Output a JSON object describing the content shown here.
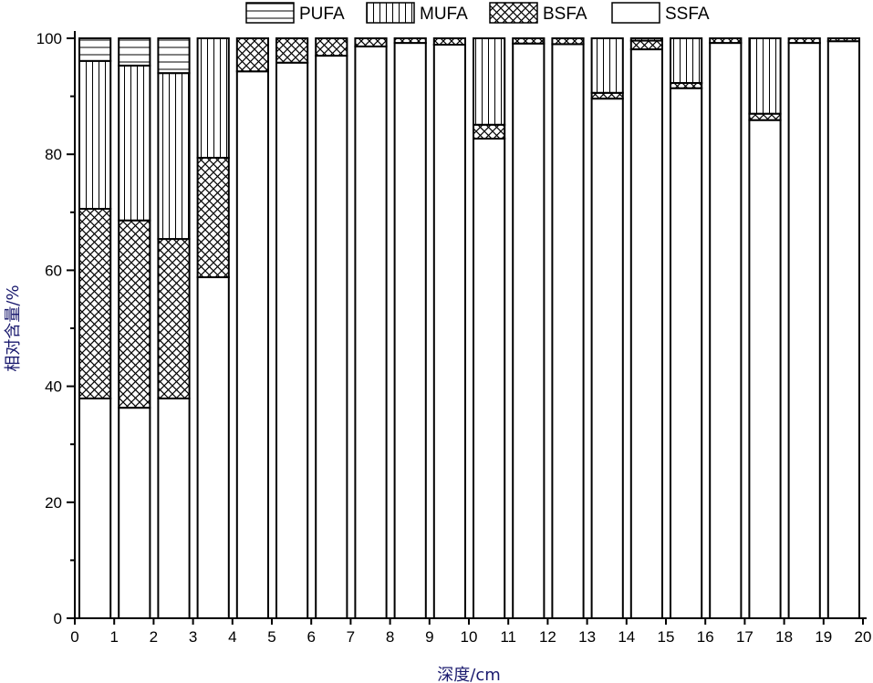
{
  "chart_data": {
    "type": "bar",
    "stacked": true,
    "xlabel": "深度/cm",
    "ylabel": "相对含量/%",
    "xlim": [
      0,
      20
    ],
    "ylim": [
      0,
      100
    ],
    "xticks": [
      "0",
      "1",
      "2",
      "3",
      "4",
      "5",
      "6",
      "7",
      "8",
      "9",
      "10",
      "11",
      "12",
      "13",
      "14",
      "15",
      "16",
      "17",
      "18",
      "19",
      "20"
    ],
    "yticks": [
      "0",
      "20",
      "40",
      "60",
      "80",
      "100"
    ],
    "legend_position": "top",
    "categories": [
      "0-1",
      "1-2",
      "2-3",
      "3-4",
      "4-5",
      "5-6",
      "6-7",
      "7-8",
      "8-9",
      "9-10",
      "10-11",
      "11-12",
      "12-13",
      "13-14",
      "14-15",
      "15-16",
      "16-17",
      "17-18",
      "18-19",
      "19-20"
    ],
    "series": [
      {
        "name": "SSFA",
        "pattern": "none",
        "values": [
          37.9,
          36.3,
          37.9,
          58.8,
          94.3,
          95.8,
          97.0,
          98.6,
          99.2,
          98.9,
          82.7,
          99.1,
          99.0,
          89.6,
          98.1,
          91.4,
          99.2,
          85.9,
          99.2,
          99.5
        ]
      },
      {
        "name": "BSFA",
        "pattern": "crosshatch",
        "values": [
          32.7,
          32.3,
          27.5,
          20.6,
          5.7,
          4.2,
          3.0,
          1.4,
          0.8,
          1.1,
          2.4,
          0.9,
          1.0,
          1.0,
          1.5,
          0.9,
          0.8,
          1.1,
          0.8,
          0.5
        ]
      },
      {
        "name": "MUFA",
        "pattern": "vertical",
        "values": [
          25.5,
          26.7,
          28.6,
          20.6,
          0,
          0,
          0,
          0,
          0,
          0,
          14.9,
          0,
          0,
          9.4,
          0.4,
          7.7,
          0,
          13.0,
          0,
          0
        ]
      },
      {
        "name": "PUFA",
        "pattern": "horizontal",
        "values": [
          3.9,
          4.7,
          6.0,
          0,
          0,
          0,
          0,
          0,
          0,
          0,
          0,
          0,
          0,
          0,
          0,
          0,
          0,
          0,
          0,
          0
        ]
      }
    ],
    "legend_order": [
      "PUFA",
      "MUFA",
      "BSFA",
      "SSFA"
    ]
  }
}
